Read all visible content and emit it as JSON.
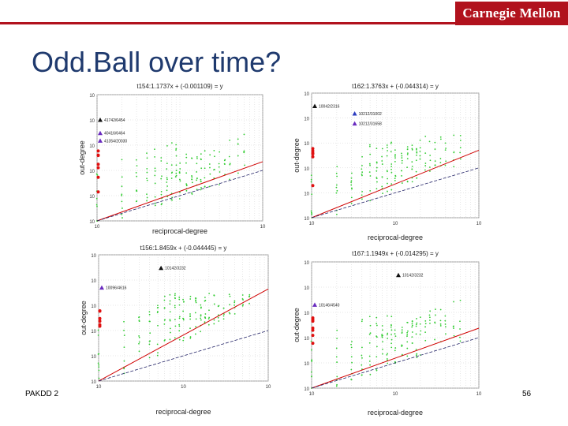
{
  "slide": {
    "title": "Odd.Ball over time?",
    "footer_left": "PAKDD 2",
    "page_number": "56",
    "logo_text": "Carnegie Mellon",
    "accent_color": "#b1121d",
    "title_color": "#1f3a6e"
  },
  "chart_data": [
    {
      "type": "scatter",
      "title": "t154:1.1737x + (-0.001109) = y",
      "xlabel": "reciprocal-degree",
      "ylabel": "out-degree",
      "log_scale": true,
      "xlim": [
        1,
        100
      ],
      "ylim": [
        1,
        100000
      ],
      "grid": true,
      "x_tick_labels": [
        "10",
        "10"
      ],
      "y_tick_labels": [
        "10",
        "10",
        "10",
        "10",
        "10",
        "10"
      ],
      "fit_line": {
        "slope": 1.1737,
        "intercept": -0.001109,
        "color": "#d00000"
      },
      "anomalies": [
        {
          "label": "41742/6454",
          "x": 1,
          "y": 10000,
          "marker": "triangle",
          "color": "#111111"
        },
        {
          "label": "40416/6464",
          "x": 1,
          "y": 3000,
          "marker": "triangle",
          "color": "#6a2bbf"
        },
        {
          "label": "41354/20030",
          "x": 1,
          "y": 1500,
          "marker": "triangle",
          "color": "#6a2bbf"
        }
      ]
    },
    {
      "type": "scatter",
      "title": "t162:1.3763x + (-0.044314) = y",
      "xlabel": "reciprocal-degree",
      "ylabel": "out-degree",
      "log_scale": true,
      "xlim": [
        1,
        100
      ],
      "ylim": [
        1,
        100000
      ],
      "grid": true,
      "x_tick_labels": [
        "10",
        "10",
        "10"
      ],
      "y_tick_labels": [
        "10",
        "10",
        "10",
        "10",
        "10",
        "10"
      ],
      "fit_line": {
        "slope": 1.3763,
        "intercept": -0.044314,
        "color": "#d00000"
      },
      "anomalies": [
        {
          "label": "10042/2316",
          "x": 1,
          "y": 30000,
          "marker": "triangle",
          "color": "#111111"
        },
        {
          "label": "10212/31002",
          "x": 3,
          "y": 15000,
          "marker": "triangle",
          "color": "#2b3bbf"
        },
        {
          "label": "10212/31658",
          "x": 3,
          "y": 6000,
          "marker": "triangle",
          "color": "#6a2bbf"
        }
      ]
    },
    {
      "type": "scatter",
      "title": "t156:1.8459x + (-0.044445) = y",
      "xlabel": "reciprocal-degree",
      "ylabel": "out-degree",
      "log_scale": true,
      "xlim": [
        1,
        100
      ],
      "ylim": [
        1,
        100000
      ],
      "grid": true,
      "x_tick_labels": [
        "10",
        "10",
        "10"
      ],
      "y_tick_labels": [
        "10",
        "10",
        "10",
        "10",
        "10",
        "10"
      ],
      "fit_line": {
        "slope": 1.8459,
        "intercept": -0.044445,
        "color": "#d00000"
      },
      "anomalies": [
        {
          "label": "10142/3232",
          "x": 5,
          "y": 30000,
          "marker": "triangle",
          "color": "#111111"
        },
        {
          "label": "10096/4616",
          "x": 1,
          "y": 5000,
          "marker": "triangle",
          "color": "#6a2bbf"
        }
      ]
    },
    {
      "type": "scatter",
      "title": "t167:1.1949x + (-0.014295) = y",
      "xlabel": "reciprocal-degree",
      "ylabel": "out-degree",
      "log_scale": true,
      "xlim": [
        1,
        100
      ],
      "ylim": [
        1,
        100000
      ],
      "grid": true,
      "x_tick_labels": [
        "10",
        "10",
        "10"
      ],
      "y_tick_labels": [
        "10",
        "10",
        "10",
        "10",
        "10",
        "10"
      ],
      "fit_line": {
        "slope": 1.1949,
        "intercept": -0.014295,
        "color": "#d00000"
      },
      "anomalies": [
        {
          "label": "10142/3232",
          "x": 10,
          "y": 30000,
          "marker": "triangle",
          "color": "#111111"
        },
        {
          "label": "10146/4540",
          "x": 1,
          "y": 2000,
          "marker": "triangle",
          "color": "#6a2bbf"
        }
      ]
    }
  ]
}
